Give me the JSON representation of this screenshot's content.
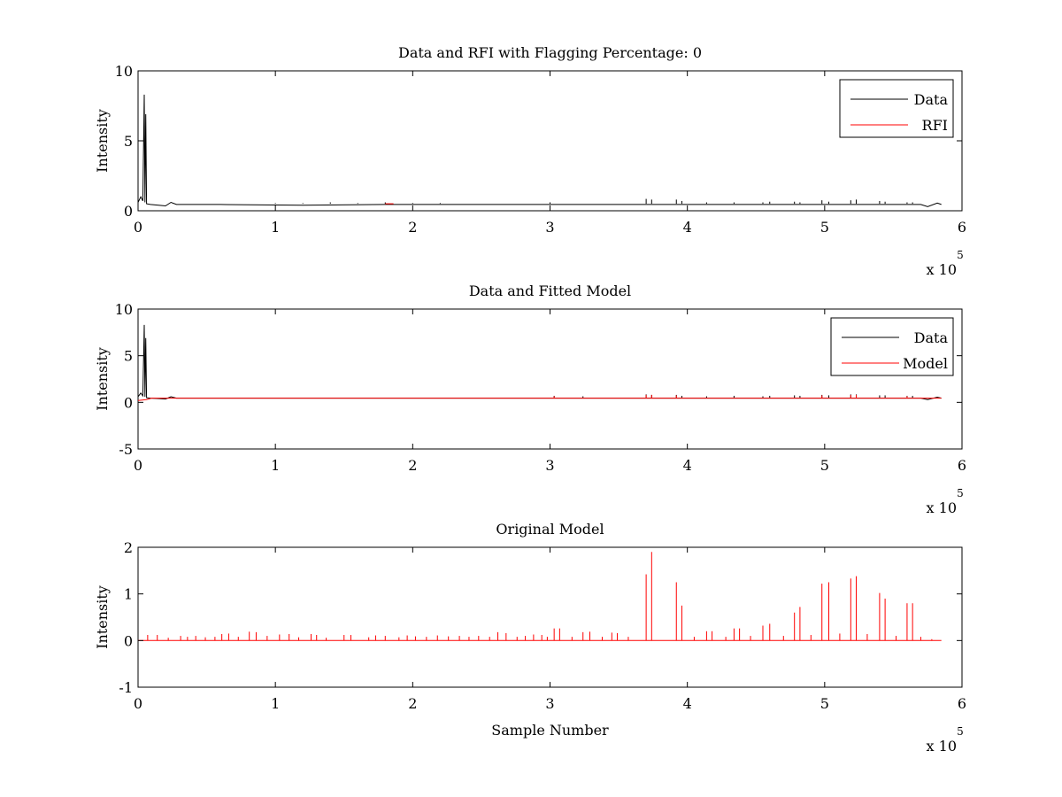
{
  "figure": {
    "background": "#ffffff"
  },
  "chart_data": [
    {
      "type": "line",
      "title": "Data and RFI with Flagging Percentage: 0",
      "xlabel": "",
      "ylabel": "Intensity",
      "xlim": [
        0,
        600000
      ],
      "ylim": [
        0,
        10
      ],
      "xticks": [
        0,
        1,
        2,
        3,
        4,
        5,
        6
      ],
      "yticks": [
        0,
        5,
        10
      ],
      "x_exponent_label": "x 10",
      "x_exponent_power": "5",
      "grid": false,
      "legend_position": "top-right",
      "series": [
        {
          "name": "Data",
          "color": "#000000",
          "baseline": 0.5,
          "points": [
            [
              0,
              0.6
            ],
            [
              2000,
              1.0
            ],
            [
              3500,
              0.7
            ],
            [
              4500,
              8.3
            ],
            [
              5000,
              0.6
            ],
            [
              5600,
              6.9
            ],
            [
              6200,
              0.5
            ],
            [
              9000,
              0.45
            ],
            [
              15000,
              0.4
            ],
            [
              20000,
              0.35
            ],
            [
              24000,
              0.6
            ],
            [
              28000,
              0.45
            ],
            [
              60000,
              0.45
            ],
            [
              120000,
              0.4
            ],
            [
              180000,
              0.45
            ],
            [
              300000,
              0.45
            ],
            [
              570000,
              0.45
            ],
            [
              575000,
              0.3
            ],
            [
              582000,
              0.55
            ],
            [
              585000,
              0.45
            ]
          ],
          "spikes": [
            [
              100000,
              0.55
            ],
            [
              120000,
              0.55
            ],
            [
              140000,
              0.6
            ],
            [
              160000,
              0.55
            ],
            [
              180000,
              0.6
            ],
            [
              200000,
              0.55
            ],
            [
              220000,
              0.55
            ],
            [
              300000,
              0.6
            ],
            [
              370000,
              0.85
            ],
            [
              374000,
              0.8
            ],
            [
              392000,
              0.8
            ],
            [
              396000,
              0.7
            ],
            [
              414000,
              0.6
            ],
            [
              434000,
              0.6
            ],
            [
              455000,
              0.6
            ],
            [
              460000,
              0.65
            ],
            [
              478000,
              0.65
            ],
            [
              482000,
              0.6
            ],
            [
              498000,
              0.75
            ],
            [
              503000,
              0.65
            ],
            [
              519000,
              0.75
            ],
            [
              523000,
              0.8
            ],
            [
              540000,
              0.7
            ],
            [
              544000,
              0.65
            ],
            [
              560000,
              0.6
            ],
            [
              564000,
              0.6
            ]
          ]
        },
        {
          "name": "RFI",
          "color": "#ff0000",
          "points": [
            [
              180000,
              0.5
            ],
            [
              186000,
              0.5
            ]
          ],
          "spikes": []
        }
      ]
    },
    {
      "type": "line",
      "title": "Data and Fitted Model",
      "xlabel": "",
      "ylabel": "Intensity",
      "xlim": [
        0,
        600000
      ],
      "ylim": [
        -5,
        10
      ],
      "xticks": [
        0,
        1,
        2,
        3,
        4,
        5,
        6
      ],
      "yticks": [
        -5,
        0,
        5,
        10
      ],
      "x_exponent_label": "x 10",
      "x_exponent_power": "5",
      "grid": false,
      "legend_position": "top-right",
      "series": [
        {
          "name": "Data",
          "color": "#000000",
          "baseline": 0.5,
          "points": [
            [
              0,
              0.6
            ],
            [
              2000,
              1.0
            ],
            [
              3500,
              0.7
            ],
            [
              4500,
              8.3
            ],
            [
              5000,
              0.6
            ],
            [
              5600,
              6.9
            ],
            [
              6200,
              0.5
            ],
            [
              9000,
              0.45
            ],
            [
              15000,
              0.4
            ],
            [
              20000,
              0.35
            ],
            [
              24000,
              0.6
            ],
            [
              28000,
              0.45
            ],
            [
              60000,
              0.45
            ],
            [
              300000,
              0.45
            ],
            [
              570000,
              0.45
            ],
            [
              575000,
              0.3
            ],
            [
              582000,
              0.55
            ],
            [
              585000,
              0.45
            ]
          ],
          "spikes": [
            [
              303000,
              0.7
            ],
            [
              324000,
              0.65
            ],
            [
              370000,
              0.85
            ],
            [
              374000,
              0.8
            ],
            [
              392000,
              0.8
            ],
            [
              396000,
              0.7
            ],
            [
              414000,
              0.65
            ],
            [
              434000,
              0.7
            ],
            [
              455000,
              0.65
            ],
            [
              460000,
              0.7
            ],
            [
              478000,
              0.75
            ],
            [
              482000,
              0.7
            ],
            [
              498000,
              0.8
            ],
            [
              503000,
              0.75
            ],
            [
              519000,
              0.85
            ],
            [
              523000,
              0.85
            ],
            [
              540000,
              0.75
            ],
            [
              544000,
              0.75
            ],
            [
              560000,
              0.7
            ],
            [
              564000,
              0.7
            ]
          ]
        },
        {
          "name": "Model",
          "color": "#ff0000",
          "baseline": 0.5,
          "points": [
            [
              0,
              0.2
            ],
            [
              6000,
              0.3
            ],
            [
              10000,
              0.45
            ],
            [
              50000,
              0.45
            ],
            [
              585000,
              0.45
            ]
          ],
          "spikes": [
            [
              303000,
              0.65
            ],
            [
              370000,
              0.8
            ],
            [
              374000,
              0.8
            ],
            [
              392000,
              0.75
            ],
            [
              498000,
              0.75
            ],
            [
              519000,
              0.8
            ],
            [
              523000,
              0.8
            ],
            [
              560000,
              0.65
            ]
          ]
        }
      ]
    },
    {
      "type": "line",
      "title": "Original Model",
      "xlabel": "Sample Number",
      "ylabel": "Intensity",
      "xlim": [
        0,
        600000
      ],
      "ylim": [
        -1,
        2
      ],
      "xticks": [
        0,
        1,
        2,
        3,
        4,
        5,
        6
      ],
      "yticks": [
        -1,
        0,
        1,
        2
      ],
      "x_exponent_label": "x 10",
      "x_exponent_power": "5",
      "grid": false,
      "legend_position": "none",
      "series": [
        {
          "name": "",
          "color": "#ff0000",
          "baseline": 0.0,
          "points": [
            [
              0,
              0
            ],
            [
              585000,
              0
            ]
          ],
          "spikes": [
            [
              7000,
              0.12
            ],
            [
              14000,
              0.12
            ],
            [
              22000,
              0.06
            ],
            [
              31000,
              0.1
            ],
            [
              36000,
              0.08
            ],
            [
              42000,
              0.1
            ],
            [
              49000,
              0.07
            ],
            [
              56000,
              0.08
            ],
            [
              61000,
              0.14
            ],
            [
              66000,
              0.15
            ],
            [
              73000,
              0.08
            ],
            [
              81000,
              0.19
            ],
            [
              86000,
              0.18
            ],
            [
              94000,
              0.1
            ],
            [
              103000,
              0.13
            ],
            [
              110000,
              0.14
            ],
            [
              117000,
              0.07
            ],
            [
              126000,
              0.14
            ],
            [
              130000,
              0.12
            ],
            [
              137000,
              0.06
            ],
            [
              150000,
              0.12
            ],
            [
              155000,
              0.12
            ],
            [
              168000,
              0.07
            ],
            [
              173000,
              0.11
            ],
            [
              180000,
              0.1
            ],
            [
              190000,
              0.07
            ],
            [
              196000,
              0.11
            ],
            [
              202000,
              0.09
            ],
            [
              210000,
              0.08
            ],
            [
              218000,
              0.11
            ],
            [
              226000,
              0.09
            ],
            [
              234000,
              0.1
            ],
            [
              241000,
              0.08
            ],
            [
              248000,
              0.1
            ],
            [
              256000,
              0.08
            ],
            [
              262000,
              0.18
            ],
            [
              268000,
              0.16
            ],
            [
              276000,
              0.08
            ],
            [
              282000,
              0.1
            ],
            [
              288000,
              0.13
            ],
            [
              294000,
              0.12
            ],
            [
              298000,
              0.08
            ],
            [
              303000,
              0.26
            ],
            [
              307000,
              0.26
            ],
            [
              316000,
              0.08
            ],
            [
              324000,
              0.18
            ],
            [
              329000,
              0.19
            ],
            [
              338000,
              0.08
            ],
            [
              345000,
              0.17
            ],
            [
              349000,
              0.16
            ],
            [
              357000,
              0.08
            ],
            [
              370000,
              1.42
            ],
            [
              374000,
              1.9
            ],
            [
              392000,
              1.25
            ],
            [
              396000,
              0.75
            ],
            [
              405000,
              0.08
            ],
            [
              414000,
              0.2
            ],
            [
              418000,
              0.2
            ],
            [
              428000,
              0.08
            ],
            [
              434000,
              0.26
            ],
            [
              438000,
              0.26
            ],
            [
              446000,
              0.1
            ],
            [
              455000,
              0.32
            ],
            [
              460000,
              0.36
            ],
            [
              470000,
              0.1
            ],
            [
              478000,
              0.6
            ],
            [
              482000,
              0.72
            ],
            [
              490000,
              0.12
            ],
            [
              498000,
              1.22
            ],
            [
              503000,
              1.25
            ],
            [
              511000,
              0.15
            ],
            [
              519000,
              1.33
            ],
            [
              523000,
              1.38
            ],
            [
              531000,
              0.14
            ],
            [
              540000,
              1.02
            ],
            [
              544000,
              0.9
            ],
            [
              552000,
              0.1
            ],
            [
              560000,
              0.8
            ],
            [
              564000,
              0.8
            ],
            [
              570000,
              0.08
            ],
            [
              578000,
              0.03
            ]
          ]
        }
      ]
    }
  ]
}
